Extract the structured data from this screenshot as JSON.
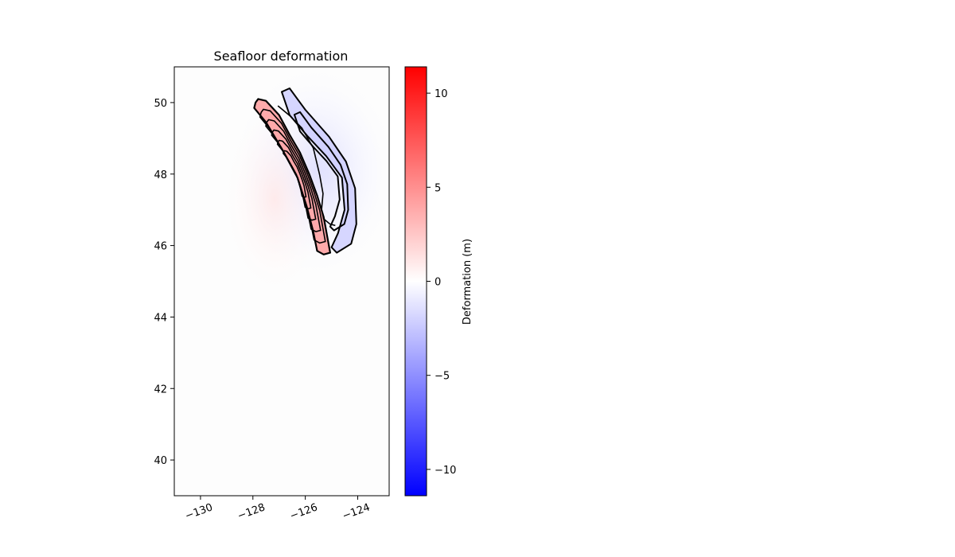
{
  "chart_data": {
    "type": "heatmap",
    "title": "Seafloor deformation",
    "xlabel": "",
    "ylabel": "",
    "xlim": [
      -131,
      -122.8
    ],
    "ylim": [
      39,
      51
    ],
    "x_ticks": [
      {
        "value": -130,
        "label": "−130"
      },
      {
        "value": -128,
        "label": "−128"
      },
      {
        "value": -126,
        "label": "−126"
      },
      {
        "value": -124,
        "label": "−124"
      }
    ],
    "y_ticks": [
      {
        "value": 40,
        "label": "40"
      },
      {
        "value": 42,
        "label": "42"
      },
      {
        "value": 44,
        "label": "44"
      },
      {
        "value": 46,
        "label": "46"
      },
      {
        "value": 48,
        "label": "48"
      },
      {
        "value": 50,
        "label": "50"
      }
    ],
    "colormap": {
      "name": "bwr",
      "low_color": "#0000ff",
      "mid_color": "#ffffff",
      "high_color": "#ff0000"
    },
    "colorbar": {
      "label": "Deformation (m)",
      "range": [
        -11.4,
        11.4
      ],
      "ticks": [
        {
          "value": 10,
          "label": "10"
        },
        {
          "value": 5,
          "label": "5"
        },
        {
          "value": 0,
          "label": "0"
        },
        {
          "value": -5,
          "label": "−5"
        },
        {
          "value": -10,
          "label": "−10"
        }
      ]
    },
    "uplift_zone": {
      "description": "positive deformation band along the trench",
      "peak_value": 8,
      "outline": [
        [
          -127.9,
          50.0
        ],
        [
          -127.8,
          50.1
        ],
        [
          -127.5,
          50.05
        ],
        [
          -127.0,
          49.65
        ],
        [
          -126.6,
          49.1
        ],
        [
          -126.2,
          48.6
        ],
        [
          -125.85,
          48.0
        ],
        [
          -125.55,
          47.4
        ],
        [
          -125.3,
          46.8
        ],
        [
          -125.15,
          46.2
        ],
        [
          -125.05,
          45.8
        ],
        [
          -125.3,
          45.75
        ],
        [
          -125.55,
          45.85
        ],
        [
          -125.7,
          46.4
        ],
        [
          -125.95,
          47.1
        ],
        [
          -126.3,
          47.9
        ],
        [
          -126.85,
          48.65
        ],
        [
          -127.5,
          49.45
        ],
        [
          -127.95,
          49.85
        ]
      ]
    },
    "subsidence_zone": {
      "description": "negative deformation band landward of the uplift",
      "min_value": -2,
      "outline": [
        [
          -126.9,
          50.3
        ],
        [
          -126.6,
          50.4
        ],
        [
          -126.0,
          49.8
        ],
        [
          -125.1,
          49.05
        ],
        [
          -124.45,
          48.35
        ],
        [
          -124.1,
          47.6
        ],
        [
          -124.05,
          46.6
        ],
        [
          -124.25,
          46.05
        ],
        [
          -124.8,
          45.8
        ],
        [
          -125.0,
          45.95
        ],
        [
          -124.75,
          46.35
        ],
        [
          -124.5,
          47.0
        ],
        [
          -124.6,
          47.9
        ],
        [
          -125.2,
          48.5
        ],
        [
          -125.9,
          49.05
        ],
        [
          -126.6,
          49.65
        ]
      ]
    }
  }
}
